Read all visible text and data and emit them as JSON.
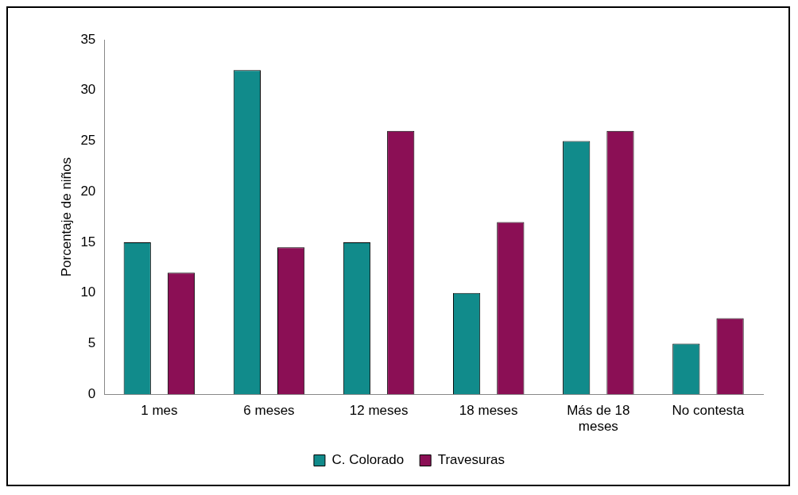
{
  "chart_data": {
    "type": "bar",
    "ylabel": "Porcentaje de niños",
    "categories": [
      "1 mes",
      "6 meses",
      "12 meses",
      "18 meses",
      "Más de 18 meses",
      "No contesta"
    ],
    "series": [
      {
        "name": "C. Colorado",
        "color": "#118b8b",
        "values": [
          15,
          32,
          15,
          10,
          25,
          5
        ]
      },
      {
        "name": "Travesuras",
        "color": "#8b0f55",
        "values": [
          12,
          14.5,
          26,
          17,
          26,
          7.5
        ]
      }
    ],
    "ylim": [
      0,
      35
    ],
    "yticks": [
      0,
      5,
      10,
      15,
      20,
      25,
      30,
      35
    ],
    "grid": false,
    "legend": "bottom"
  }
}
